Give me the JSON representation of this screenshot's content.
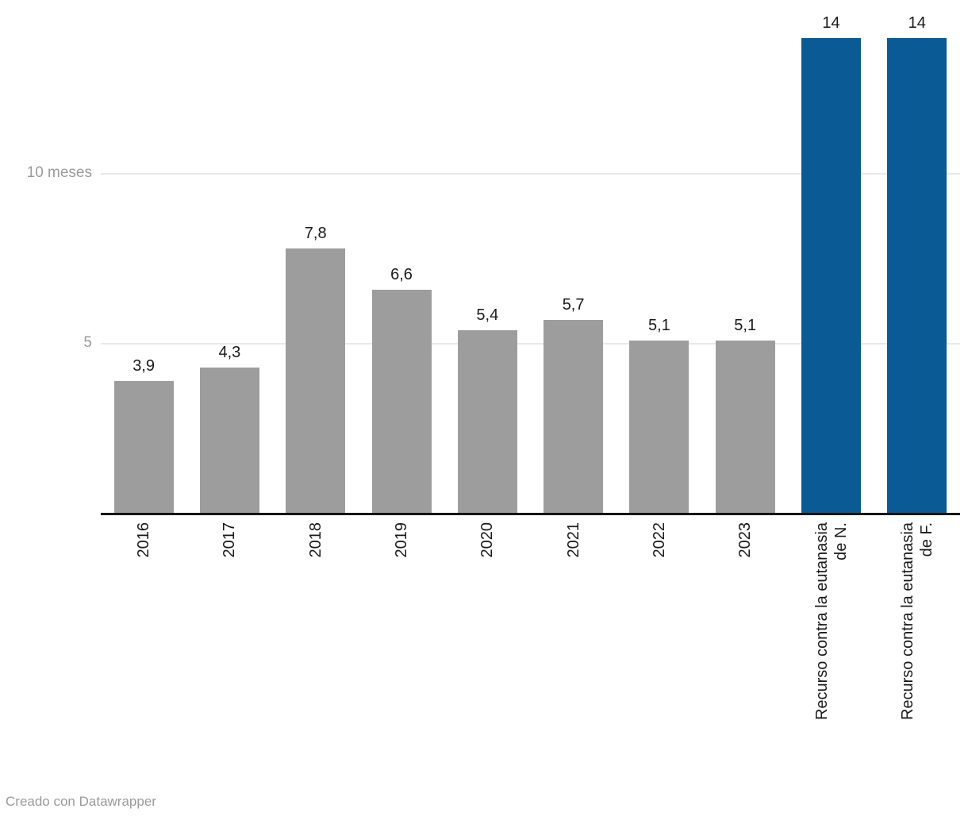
{
  "chart_data": {
    "type": "bar",
    "title": "",
    "xlabel": "",
    "ylabel": "meses",
    "categories": [
      "2016",
      "2017",
      "2018",
      "2019",
      "2020",
      "2021",
      "2022",
      "2023",
      "Recurso contra la eutanasia de N.",
      "Recurso contra la eutanasia de F."
    ],
    "category_lines": [
      [
        "2016"
      ],
      [
        "2017"
      ],
      [
        "2018"
      ],
      [
        "2019"
      ],
      [
        "2020"
      ],
      [
        "2021"
      ],
      [
        "2022"
      ],
      [
        "2023"
      ],
      [
        "Recurso contra la eutanasia",
        "de N."
      ],
      [
        "Recurso contra la eutanasia",
        "de F."
      ]
    ],
    "values": [
      3.9,
      4.3,
      7.8,
      6.6,
      5.4,
      5.7,
      5.1,
      5.1,
      14,
      14
    ],
    "value_labels": [
      "3,9",
      "4,3",
      "7,8",
      "6,6",
      "5,4",
      "5,7",
      "5,1",
      "5,1",
      "14",
      "14"
    ],
    "highlight_indices": [
      8,
      9
    ],
    "ylim": [
      0,
      15
    ],
    "yticks": [
      {
        "value": 5,
        "label": "5"
      },
      {
        "value": 10,
        "label": "10 meses"
      }
    ],
    "grid": "horizontal",
    "legend_position": "none",
    "colors": {
      "default_bar": "#9d9d9d",
      "highlight_bar": "#0a5a96",
      "gridline": "#e9e9e9",
      "axis_line": "#151515",
      "tick_label": "#9c9c9c",
      "bar_label": "#1a1a1a"
    }
  },
  "footer": {
    "text": "Creado con Datawrapper"
  }
}
